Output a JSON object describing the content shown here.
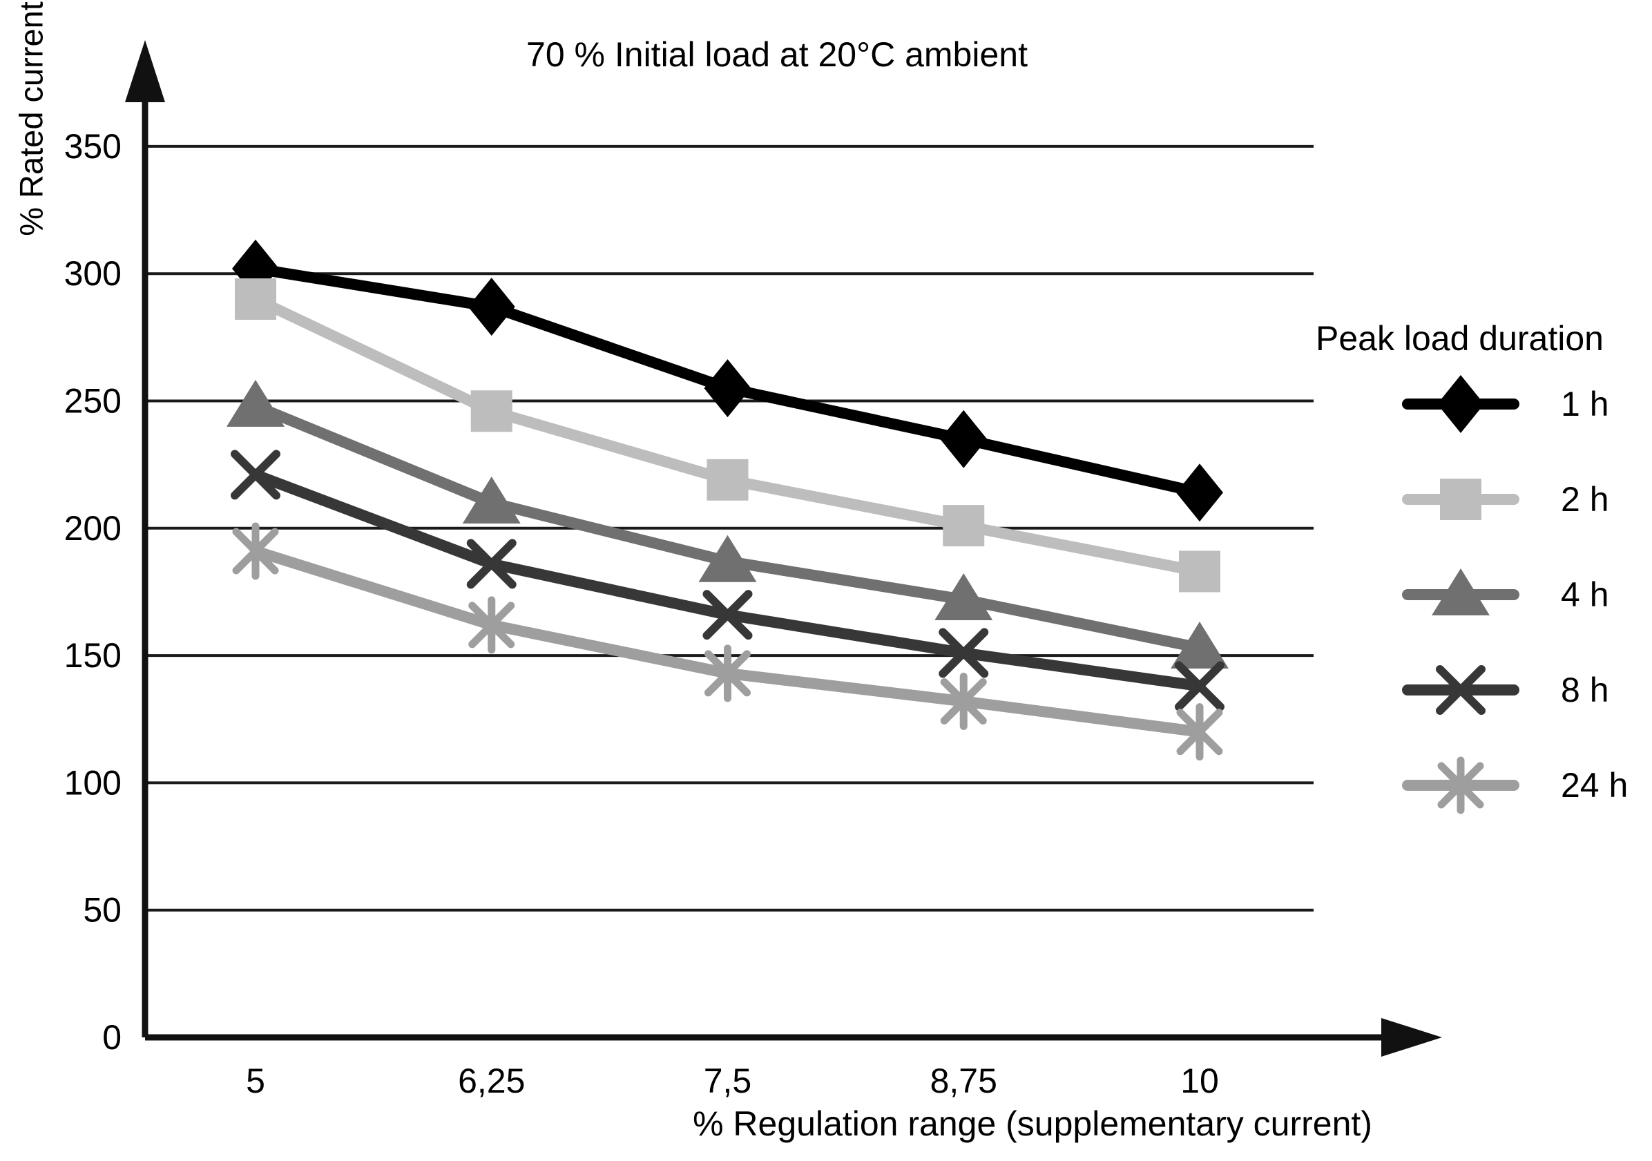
{
  "chart_data": {
    "type": "line",
    "title": "70 % Initial load at 20°C ambient",
    "xlabel": "% Regulation range (supplementary current)",
    "ylabel": "% Rated current",
    "legend_title": "Peak load duration",
    "legend_position": "right",
    "grid": "horizontal",
    "x": [
      5,
      6.25,
      7.5,
      8.75,
      10
    ],
    "x_tick_labels": [
      "5",
      "6,25",
      "7,5",
      "8,75",
      "10"
    ],
    "y_ticks": [
      0,
      50,
      100,
      150,
      200,
      250,
      300,
      350
    ],
    "ylim": [
      0,
      380
    ],
    "axis_color": "#111111",
    "grid_color": "#1a1a1a",
    "series": [
      {
        "name": "1 h",
        "marker": "diamond",
        "color": "#000000",
        "values": [
          302,
          287,
          255,
          235,
          214
        ]
      },
      {
        "name": "2 h",
        "marker": "square",
        "color": "#bdbdbd",
        "values": [
          290,
          246,
          219,
          201,
          183
        ]
      },
      {
        "name": "4 h",
        "marker": "triangle",
        "color": "#707070",
        "values": [
          248,
          210,
          187,
          172,
          153
        ]
      },
      {
        "name": "8 h",
        "marker": "x",
        "color": "#373737",
        "values": [
          221,
          186,
          166,
          151,
          138
        ]
      },
      {
        "name": "24 h",
        "marker": "asterisk",
        "color": "#9e9e9e",
        "values": [
          191,
          162,
          143,
          132,
          120
        ]
      }
    ]
  }
}
